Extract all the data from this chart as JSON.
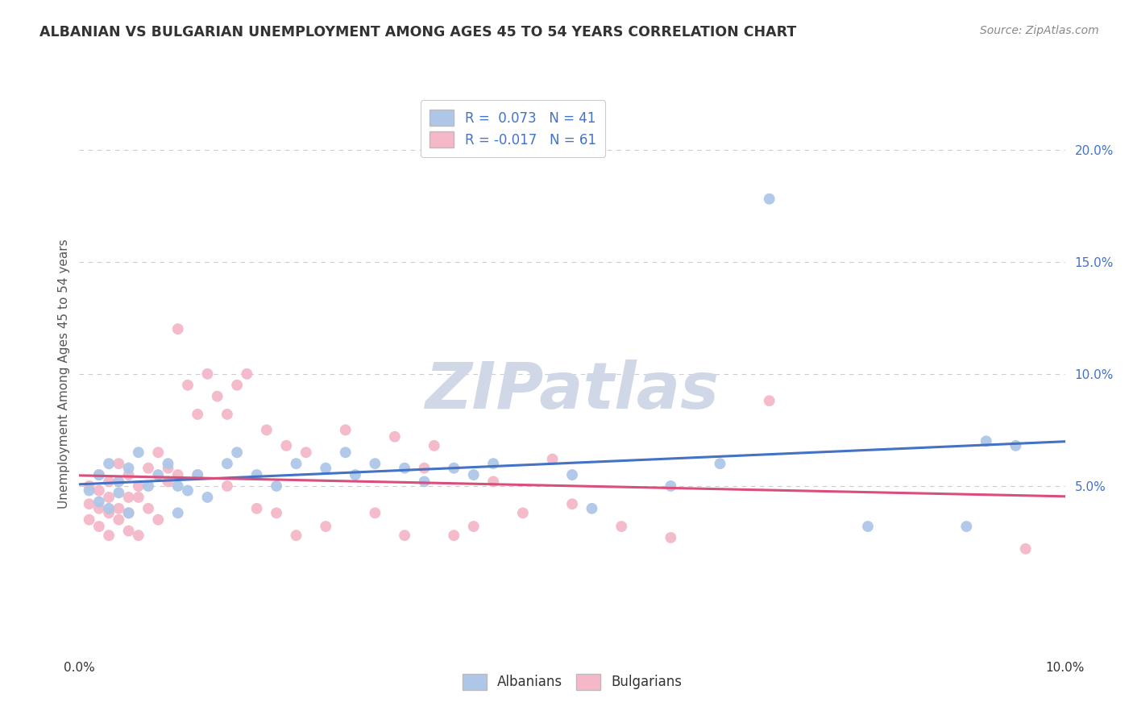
{
  "title": "ALBANIAN VS BULGARIAN UNEMPLOYMENT AMONG AGES 45 TO 54 YEARS CORRELATION CHART",
  "source": "Source: ZipAtlas.com",
  "ylabel": "Unemployment Among Ages 45 to 54 years",
  "legend_albanian": "R =  0.073   N = 41",
  "legend_bulgarian": "R = -0.017   N = 61",
  "xlim": [
    0.0,
    0.1
  ],
  "ylim": [
    -0.025,
    0.225
  ],
  "albanian_color": "#aec6e8",
  "bulgarian_color": "#f4b8c8",
  "albanian_line_color": "#4472c4",
  "bulgarian_line_color": "#d94f7a",
  "background_color": "#ffffff",
  "grid_color": "#cccccc",
  "watermark_color": "#d0d8e8",
  "albanian_x": [
    0.001,
    0.002,
    0.002,
    0.003,
    0.003,
    0.004,
    0.004,
    0.005,
    0.005,
    0.006,
    0.007,
    0.008,
    0.009,
    0.01,
    0.01,
    0.011,
    0.012,
    0.013,
    0.015,
    0.016,
    0.018,
    0.02,
    0.022,
    0.025,
    0.027,
    0.028,
    0.03,
    0.033,
    0.035,
    0.038,
    0.04,
    0.042,
    0.05,
    0.052,
    0.06,
    0.065,
    0.07,
    0.08,
    0.09,
    0.092,
    0.095
  ],
  "albanian_y": [
    0.048,
    0.043,
    0.055,
    0.06,
    0.04,
    0.052,
    0.047,
    0.058,
    0.038,
    0.065,
    0.05,
    0.055,
    0.06,
    0.05,
    0.038,
    0.048,
    0.055,
    0.045,
    0.06,
    0.065,
    0.055,
    0.05,
    0.06,
    0.058,
    0.065,
    0.055,
    0.06,
    0.058,
    0.052,
    0.058,
    0.055,
    0.06,
    0.055,
    0.04,
    0.05,
    0.06,
    0.178,
    0.032,
    0.032,
    0.07,
    0.068
  ],
  "bulgarian_x": [
    0.001,
    0.001,
    0.001,
    0.002,
    0.002,
    0.002,
    0.002,
    0.003,
    0.003,
    0.003,
    0.003,
    0.004,
    0.004,
    0.004,
    0.005,
    0.005,
    0.005,
    0.005,
    0.006,
    0.006,
    0.006,
    0.007,
    0.007,
    0.008,
    0.008,
    0.009,
    0.009,
    0.01,
    0.01,
    0.011,
    0.012,
    0.012,
    0.013,
    0.014,
    0.015,
    0.015,
    0.016,
    0.017,
    0.018,
    0.019,
    0.02,
    0.021,
    0.022,
    0.023,
    0.025,
    0.027,
    0.03,
    0.032,
    0.033,
    0.035,
    0.036,
    0.038,
    0.04,
    0.042,
    0.045,
    0.048,
    0.05,
    0.055,
    0.06,
    0.07,
    0.096
  ],
  "bulgarian_y": [
    0.05,
    0.042,
    0.035,
    0.055,
    0.04,
    0.048,
    0.032,
    0.045,
    0.038,
    0.052,
    0.028,
    0.04,
    0.035,
    0.06,
    0.045,
    0.038,
    0.055,
    0.03,
    0.05,
    0.045,
    0.028,
    0.058,
    0.04,
    0.065,
    0.035,
    0.052,
    0.058,
    0.12,
    0.055,
    0.095,
    0.055,
    0.082,
    0.1,
    0.09,
    0.05,
    0.082,
    0.095,
    0.1,
    0.04,
    0.075,
    0.038,
    0.068,
    0.028,
    0.065,
    0.032,
    0.075,
    0.038,
    0.072,
    0.028,
    0.058,
    0.068,
    0.028,
    0.032,
    0.052,
    0.038,
    0.062,
    0.042,
    0.032,
    0.027,
    0.088,
    0.022
  ]
}
